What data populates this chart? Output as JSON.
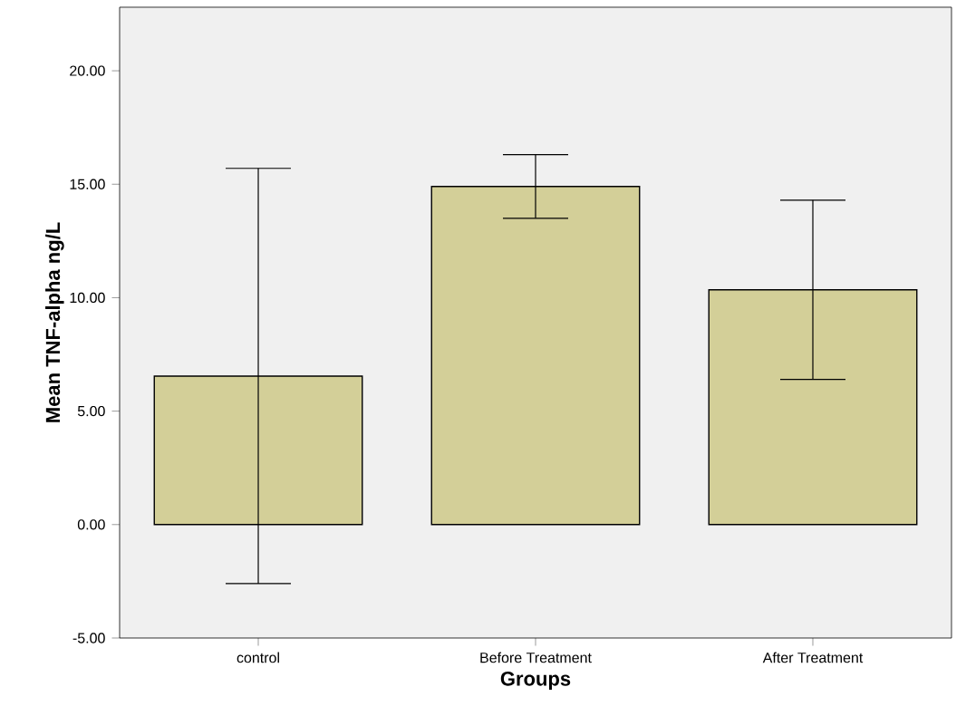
{
  "chart_data": {
    "type": "bar",
    "xlabel": "Groups",
    "ylabel": "Mean TNF-alpha ng/L",
    "categories": [
      "control",
      "Before Treatment",
      "After Treatment"
    ],
    "values": [
      6.54,
      14.9,
      10.35
    ],
    "errors": [
      [
        -2.6,
        15.7
      ],
      [
        13.5,
        16.3
      ],
      [
        6.4,
        14.3
      ]
    ],
    "color": "#d3cf98",
    "ylim": [
      -5,
      22.8
    ],
    "yticks": [
      {
        "value": -5,
        "label": "-5.00"
      },
      {
        "value": 0,
        "label": "0.00"
      },
      {
        "value": 5,
        "label": "5.00"
      },
      {
        "value": 10,
        "label": "10.00"
      },
      {
        "value": 15,
        "label": "15.00"
      },
      {
        "value": 20,
        "label": "20.00"
      }
    ],
    "grid": false
  }
}
